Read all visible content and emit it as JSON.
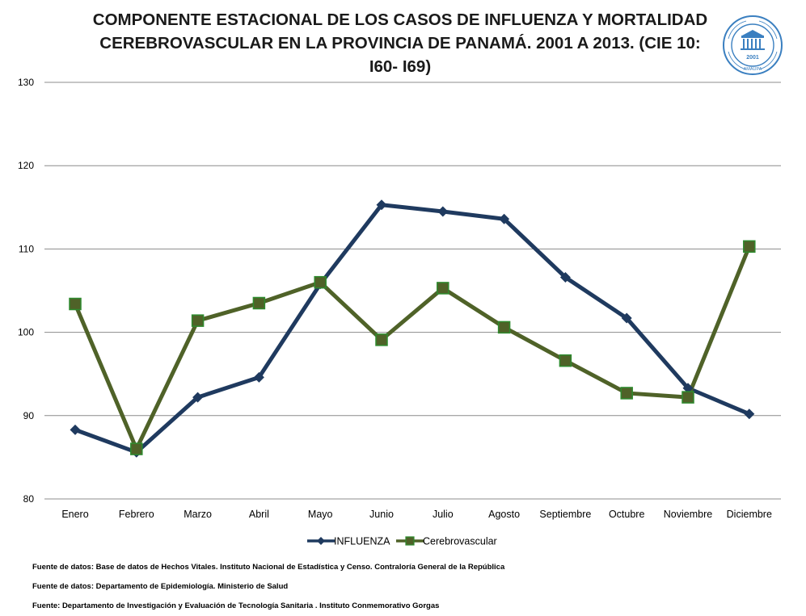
{
  "title_lines": [
    "COMPONENTE ESTACIONAL DE LOS CASOS DE INFLUENZA Y MORTALIDAD",
    "CEREBROVASCULAR EN LA PROVINCIA DE PANAMÁ. 2001 A 2013. (CIE 10:",
    "I60- I69)"
  ],
  "seal": {
    "icon": "institution-seal-icon",
    "year_text": "2001",
    "caption": "AMAUPA"
  },
  "footnotes": [
    "Fuente de datos:  Base  de datos  de Hechos Vitales. Instituto Nacional  de Estadística  y Censo.  Contraloría  General de la República",
    "Fuente de datos:  Departamento de Epidemiología.  Ministerio  de Salud",
    "Fuente: Departamento   de Investigación  y  Evaluación  de Tecnología Sanitaria   . Instituto  Conmemorativo Gorgas"
  ],
  "chart_data": {
    "type": "line",
    "title": "COMPONENTE ESTACIONAL DE LOS CASOS DE INFLUENZA Y MORTALIDAD CEREBROVASCULAR EN LA PROVINCIA DE PANAMÁ. 2001 A 2013. (CIE 10: I60- I69)",
    "xlabel": "",
    "ylabel": "",
    "categories": [
      "Enero",
      "Febrero",
      "Marzo",
      "Abril",
      "Mayo",
      "Junio",
      "Julio",
      "Agosto",
      "Septiembre",
      "Octubre",
      "Noviembre",
      "Diciembre"
    ],
    "ylim": [
      80,
      130
    ],
    "yticks": [
      80,
      90,
      100,
      110,
      120,
      130
    ],
    "grid": true,
    "legend_position": "bottom",
    "series": [
      {
        "name": "INFLUENZA",
        "color": "#1f3a5f",
        "marker": "diamond",
        "values": [
          88.3,
          85.6,
          92.2,
          94.6,
          105.8,
          115.3,
          114.5,
          113.6,
          106.6,
          101.7,
          93.3,
          90.2
        ]
      },
      {
        "name": "Cerebrovascular",
        "color": "#4f6228",
        "marker_color": "#2e8b2e",
        "marker": "square",
        "values": [
          103.4,
          86.0,
          101.4,
          103.5,
          106.0,
          99.1,
          105.3,
          100.6,
          96.6,
          92.7,
          92.2,
          110.3
        ]
      }
    ]
  }
}
